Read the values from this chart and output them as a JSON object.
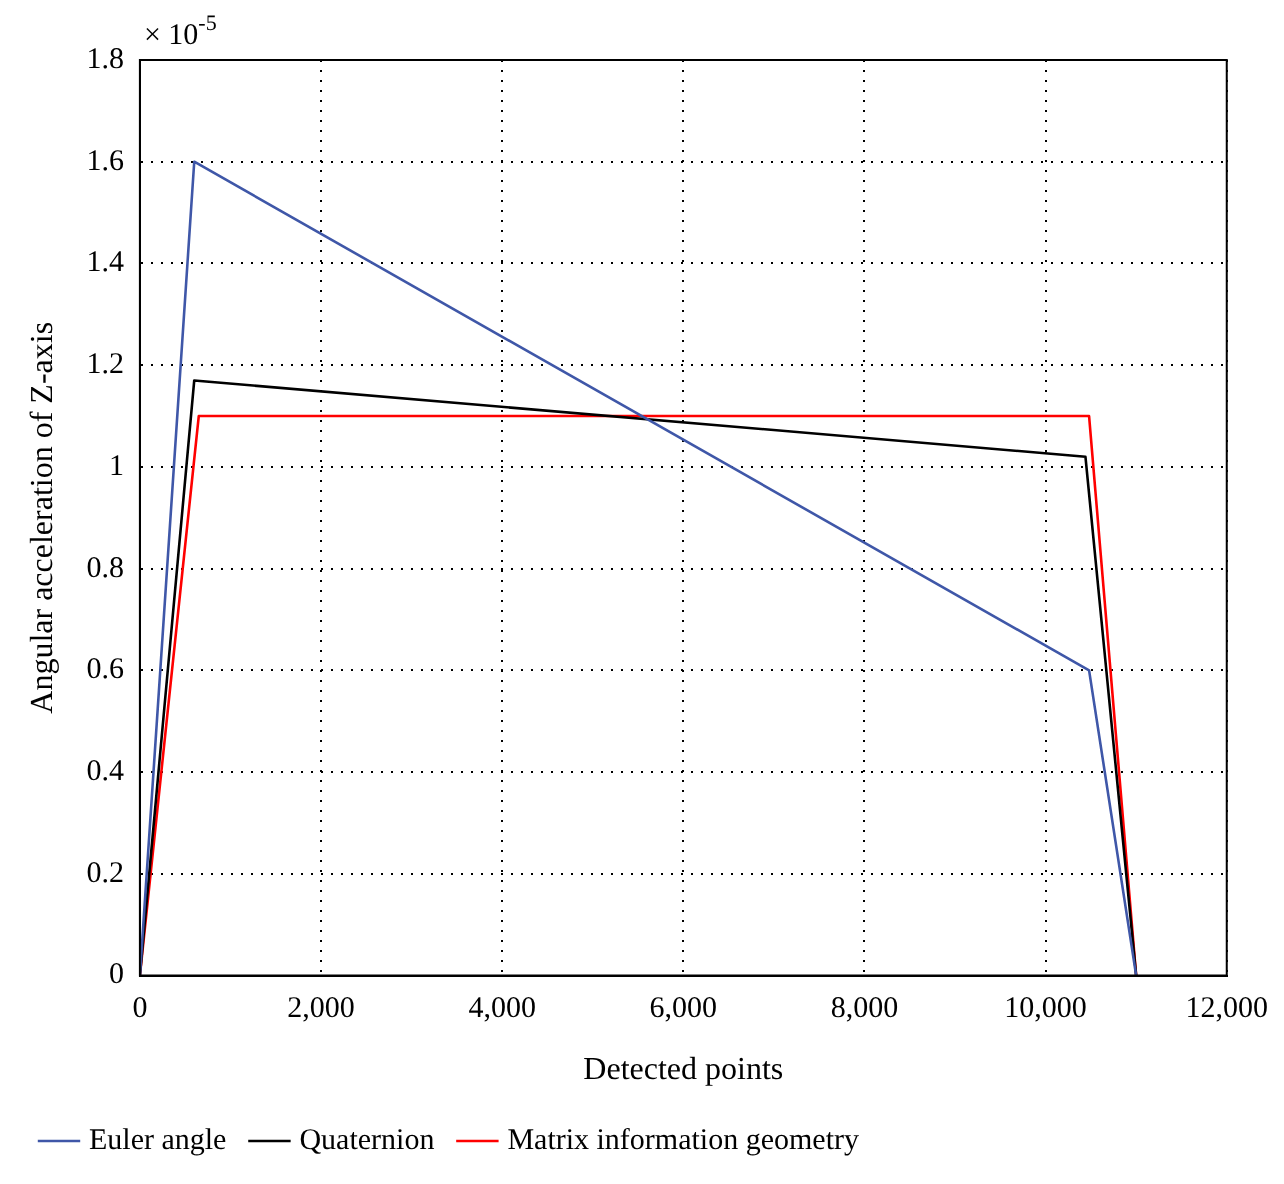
{
  "chart_data": {
    "type": "line",
    "xlabel": "Detected points",
    "ylabel": "Angular acceleration of Z-axis",
    "annotations": [
      "× 10$^{-5}$"
    ],
    "xlim": [
      0,
      12000
    ],
    "xticks": [
      0,
      {
        "value": 2000,
        "label": "2,000"
      },
      {
        "value": 4000,
        "label": "4,000"
      },
      {
        "value": 6000,
        "label": "6,000"
      },
      {
        "value": 8000,
        "label": "8,000"
      },
      {
        "value": 10000,
        "label": "10,000"
      },
      {
        "value": 12000,
        "label": "12,000"
      }
    ],
    "ylim": [
      0,
      1.8
    ],
    "yticks": [
      0,
      0.2,
      0.4,
      0.6,
      0.8,
      1,
      1.2,
      1.4,
      1.6,
      1.8
    ],
    "grid": true,
    "legend": "bottom",
    "marker": "none",
    "line_style": "solid",
    "series": [
      {
        "name": "Euler angle",
        "color": "#3f57a8",
        "x": [
          0,
          600,
          10480,
          11000
        ],
        "values": [
          0,
          1.6,
          0.6,
          0
        ]
      },
      {
        "name": "Quaternion",
        "color": "#000000",
        "x": [
          0,
          600,
          10440,
          11000
        ],
        "values": [
          0,
          1.17,
          1.02,
          0
        ]
      },
      {
        "name": "Matrix information geometry",
        "color": "#ff0000",
        "x": [
          0,
          650,
          10480,
          11000
        ],
        "values": [
          0,
          1.1,
          1.1,
          0
        ]
      }
    ]
  }
}
